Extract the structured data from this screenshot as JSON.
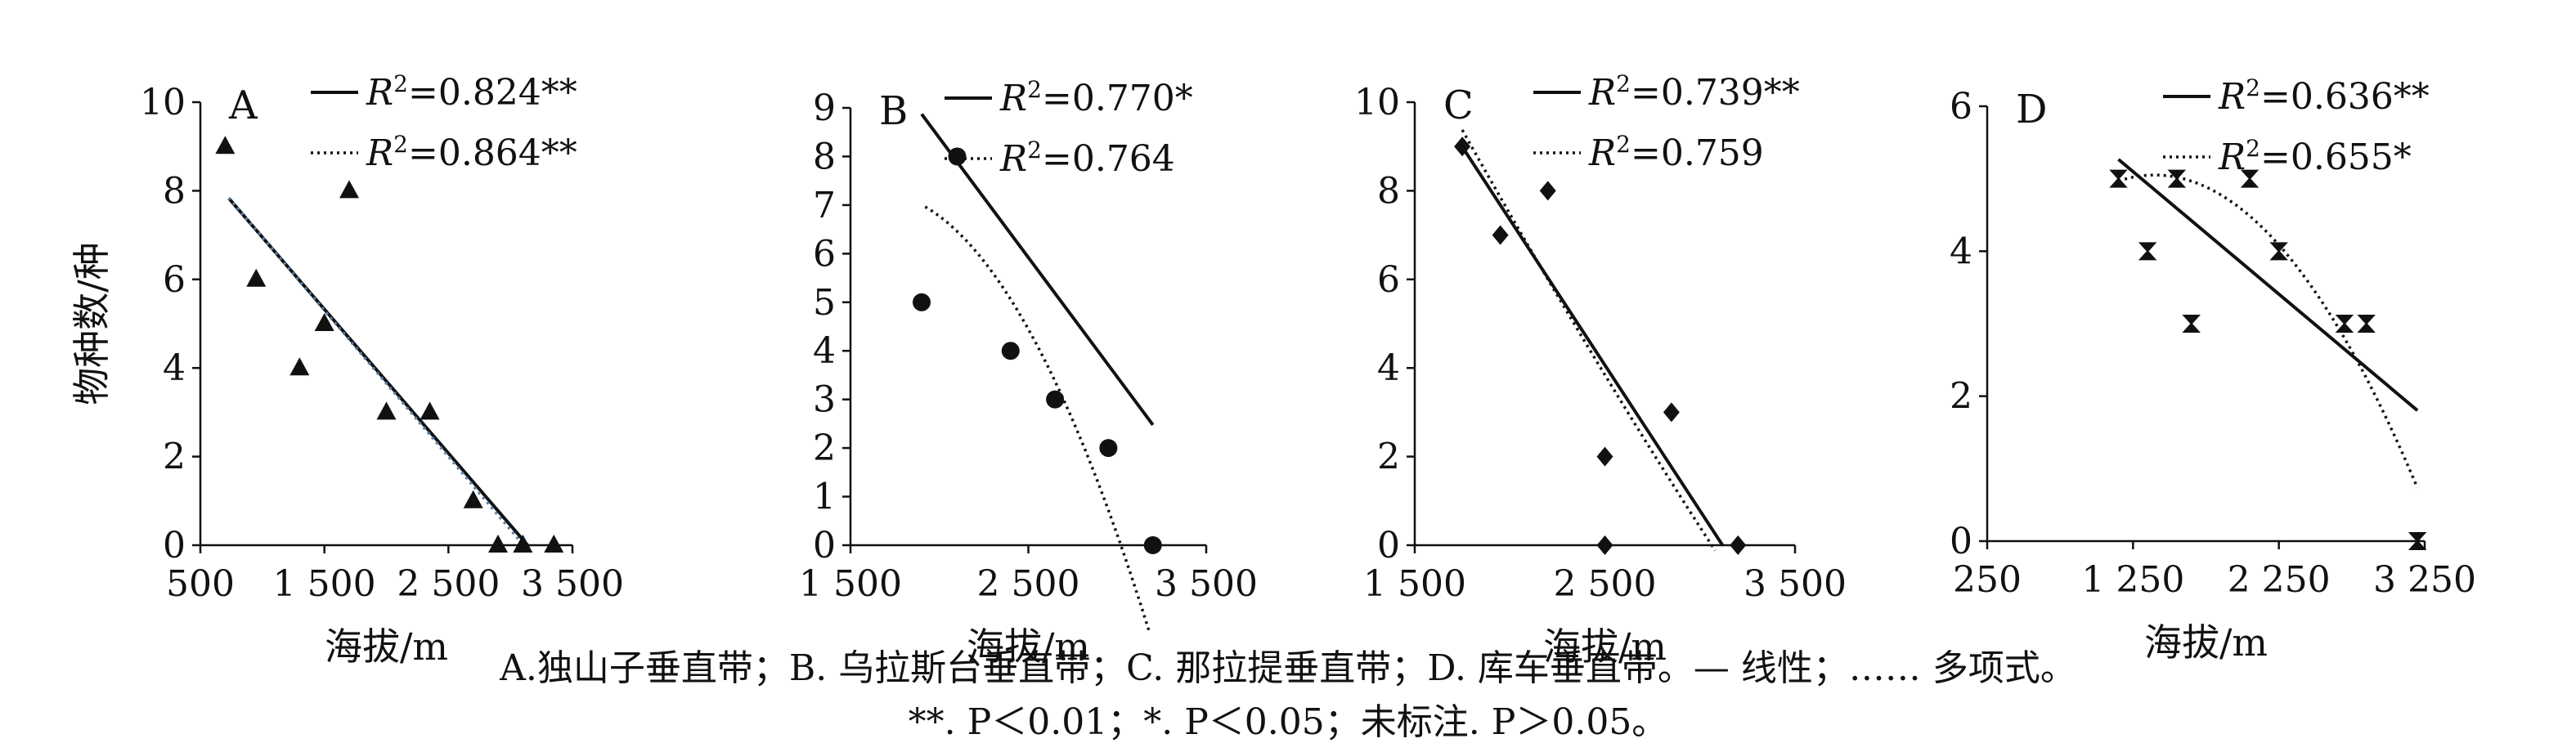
{
  "chart_data": [
    {
      "type": "scatter",
      "panel_label": "A",
      "xlabel": "海拔/m",
      "ylabel": "物种数/种",
      "xlim": [
        500,
        3500
      ],
      "ylim": [
        0,
        10
      ],
      "x_ticks": [
        500,
        1500,
        2500,
        3500
      ],
      "x_tick_labels": [
        "500",
        "1 500",
        "2 500",
        "3 500"
      ],
      "y_ticks": [
        0,
        2,
        4,
        6,
        8,
        10
      ],
      "y_tick_labels": [
        "0",
        "2",
        "4",
        "6",
        "8",
        "10"
      ],
      "marker": "triangle",
      "points": [
        [
          700,
          9
        ],
        [
          950,
          6
        ],
        [
          1300,
          4
        ],
        [
          1500,
          5
        ],
        [
          1700,
          8
        ],
        [
          2000,
          3
        ],
        [
          2350,
          3
        ],
        [
          2700,
          1
        ],
        [
          2900,
          0
        ],
        [
          3100,
          0
        ],
        [
          3350,
          0
        ]
      ],
      "fits": [
        {
          "kind": "linear",
          "style": "solid",
          "label": "=0.824**",
          "x_range": [
            730,
            3150
          ],
          "coef": [
            10.2,
            -0.00325
          ],
          "color": "#111111"
        },
        {
          "kind": "polynomial",
          "style": "dotted",
          "label": "=0.864**",
          "x_range": [
            730,
            3150
          ],
          "coef": [
            10.25,
            -0.0033,
            0.0
          ],
          "color": "#5b7fa6"
        }
      ],
      "legend_position": "top-right"
    },
    {
      "type": "scatter",
      "panel_label": "B",
      "xlabel": "海拔/m",
      "ylabel": "",
      "xlim": [
        1500,
        3500
      ],
      "ylim": [
        0,
        9
      ],
      "x_ticks": [
        1500,
        2500,
        3500
      ],
      "x_tick_labels": [
        "1 500",
        "2 500",
        "3 500"
      ],
      "y_ticks": [
        0,
        1,
        2,
        3,
        4,
        5,
        6,
        7,
        8,
        9
      ],
      "y_tick_labels": [
        "0",
        "1",
        "2",
        "3",
        "4",
        "5",
        "6",
        "7",
        "8",
        "9"
      ],
      "marker": "circle",
      "points": [
        [
          1900,
          5
        ],
        [
          2100,
          8
        ],
        [
          2400,
          4
        ],
        [
          2650,
          3
        ],
        [
          2950,
          2
        ],
        [
          3200,
          0
        ]
      ],
      "fits": [
        {
          "kind": "linear",
          "style": "solid",
          "label": "=0.770*",
          "x_range": [
            1900,
            3200
          ],
          "coef": [
            18.22,
            -0.00492
          ],
          "color": "#111111"
        },
        {
          "kind": "polynomial",
          "style": "dotted",
          "label": "=0.764",
          "x_range": [
            1920,
            3180
          ],
          "coef": [
            -3.03,
            0.01254,
            -3.82e-06
          ],
          "color": "#111111"
        }
      ],
      "legend_position": "top-right"
    },
    {
      "type": "scatter",
      "panel_label": "C",
      "xlabel": "海拔/m",
      "ylabel": "",
      "xlim": [
        1500,
        3500
      ],
      "ylim": [
        0,
        10
      ],
      "x_ticks": [
        1500,
        2500,
        3500
      ],
      "x_tick_labels": [
        "1 500",
        "2 500",
        "3 500"
      ],
      "y_ticks": [
        0,
        2,
        4,
        6,
        8,
        10
      ],
      "y_tick_labels": [
        "0",
        "2",
        "4",
        "6",
        "8",
        "10"
      ],
      "marker": "diamond",
      "points": [
        [
          1750,
          9
        ],
        [
          1950,
          7
        ],
        [
          2200,
          8
        ],
        [
          2500,
          2
        ],
        [
          2500,
          0
        ],
        [
          2850,
          3
        ],
        [
          3200,
          0
        ]
      ],
      "fits": [
        {
          "kind": "linear",
          "style": "solid",
          "label": "=0.739**",
          "x_range": [
            1750,
            3120
          ],
          "coef": [
            20.49,
            -0.00657
          ],
          "color": "#111111"
        },
        {
          "kind": "polynomial",
          "style": "dotted",
          "label": "=0.759",
          "x_range": [
            1750,
            3080
          ],
          "coef": [
            24.02,
            -0.00907,
            4e-07
          ],
          "color": "#111111"
        }
      ],
      "legend_position": "top-right"
    },
    {
      "type": "scatter",
      "panel_label": "D",
      "xlabel": "海拔/m",
      "ylabel": "",
      "xlim": [
        250,
        3250
      ],
      "ylim": [
        0,
        6
      ],
      "x_ticks": [
        250,
        1250,
        2250,
        3250
      ],
      "x_tick_labels": [
        "250",
        "1 250",
        "2 250",
        "3 250"
      ],
      "y_ticks": [
        0,
        2,
        4,
        6
      ],
      "y_tick_labels": [
        "0",
        "2",
        "4",
        "6"
      ],
      "marker": "bowtie",
      "points": [
        [
          1150,
          5
        ],
        [
          1350,
          4
        ],
        [
          1550,
          5
        ],
        [
          1650,
          3
        ],
        [
          2050,
          5
        ],
        [
          2250,
          4
        ],
        [
          2700,
          3
        ],
        [
          2850,
          3
        ],
        [
          3200,
          0
        ]
      ],
      "fits": [
        {
          "kind": "linear",
          "style": "solid",
          "label": "=0.636**",
          "x_range": [
            1150,
            3200
          ],
          "coef": [
            7.21,
            -0.00169
          ],
          "color": "#111111"
        },
        {
          "kind": "polynomial",
          "style": "dotted",
          "label": "=0.655*",
          "x_range": [
            1150,
            3200
          ],
          "coef": [
            2.45,
            0.00372,
            -1.33e-06
          ],
          "color": "#111111"
        }
      ],
      "legend_position": "top-right"
    }
  ],
  "figure": {
    "r2_symbol": "R",
    "r2_superscript": "2"
  },
  "caption": {
    "line1": "A.独山子垂直带；B. 乌拉斯台垂直带；C. 那拉提垂直带；D. 库车垂直带。— 线性；…… 多项式。",
    "line2": "**. P＜0.01；*. P＜0.05；未标注. P＞0.05。"
  }
}
